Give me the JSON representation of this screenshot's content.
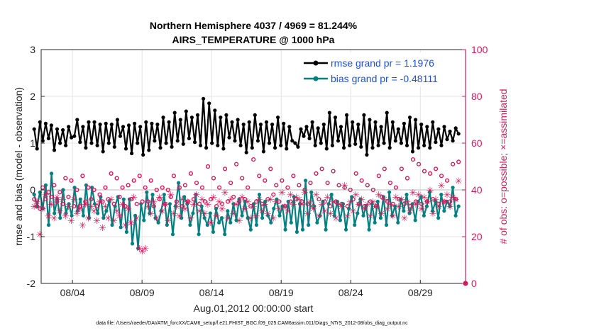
{
  "chart_data": {
    "type": "line",
    "title": "Northern Hemisphere 4037 / 4969 = 81.244%",
    "subtitle": "AIRS_TEMPERATURE @ 1000 hPa",
    "xlabel": "Aug.01,2012 00:00:00 start",
    "ylabel": "rmse and bias (model - observation)",
    "y2label": "# of obs: o=possible; ×=assimilated",
    "xlim": [
      1.75,
      32.25
    ],
    "ylim": [
      -2,
      3
    ],
    "y2lim": [
      0,
      100
    ],
    "xticks": [
      4,
      9,
      14,
      19,
      24,
      29
    ],
    "xtick_labels": [
      "08/04",
      "08/09",
      "08/14",
      "08/19",
      "08/24",
      "08/29"
    ],
    "yticks": [
      -2,
      -1,
      0,
      1,
      2,
      3
    ],
    "ytick_labels": [
      "-2",
      "-1",
      "0",
      "1",
      "2",
      "3"
    ],
    "y2ticks": [
      0,
      20,
      40,
      60,
      80,
      100
    ],
    "y2tick_labels": [
      "0",
      "20",
      "40",
      "60",
      "80",
      "100"
    ],
    "grid": true,
    "legend_position": "top-right",
    "footer": "data file: /Users/raeder/DAI/ATM_forcXX/CAM6_setup/f.e21.FHIST_BGC.f09_025.CAM6assim.011/Diags_NTrS_2012-08/obs_diag_output.nc",
    "series": [
      {
        "name": "rmse grand pr = 1.1976",
        "axis": "left",
        "color": "#000000",
        "marker": "dot",
        "values": [
          1.3,
          0.88,
          1.45,
          1.05,
          1.42,
          1.1,
          1.38,
          0.85,
          1.3,
          1.0,
          1.28,
          0.95,
          1.35,
          1.12,
          1.15,
          1.5,
          1.02,
          1.35,
          0.9,
          1.45,
          1.0,
          1.45,
          0.95,
          1.4,
          0.82,
          1.42,
          1.0,
          1.4,
          0.92,
          1.5,
          1.15,
          1.35,
          0.88,
          1.38,
          0.78,
          1.42,
          1.0,
          1.35,
          0.75,
          1.45,
          0.85,
          1.42,
          1.05,
          1.4,
          0.9,
          1.55,
          1.0,
          1.45,
          0.92,
          1.65,
          1.05,
          1.5,
          0.98,
          1.68,
          1.1,
          1.55,
          1.02,
          1.6,
          0.95,
          1.95,
          0.9,
          1.85,
          1.0,
          1.7,
          0.95,
          1.55,
          0.88,
          1.6,
          1.12,
          1.45,
          1.05,
          1.5,
          0.95,
          1.4,
          0.8,
          1.45,
          0.9,
          1.6,
          1.05,
          1.4,
          0.82,
          1.45,
          1.0,
          1.4,
          0.9,
          1.55,
          0.95,
          1.42,
          0.88,
          1.35,
          1.05,
          1.0,
          0.92,
          1.3,
          1.15,
          1.35,
          1.1,
          1.45,
          0.95,
          1.32,
          1.0,
          1.4,
          0.88,
          1.65,
          0.95,
          1.55,
          1.05,
          1.35,
          0.9,
          1.6,
          0.95,
          1.45,
          0.98,
          1.4,
          0.92,
          1.6,
          0.75,
          1.5,
          0.9,
          1.45,
          0.95,
          1.35,
          1.0,
          1.65,
          0.9,
          1.45,
          1.05,
          1.3,
          1.0,
          1.42,
          0.95,
          1.55,
          0.82,
          1.5,
          0.9,
          1.4,
          0.95,
          1.35,
          0.9,
          1.45,
          1.02,
          1.3,
          0.95,
          1.35,
          1.08,
          1.25,
          1.05,
          1.32,
          1.2
        ]
      },
      {
        "name": "bias grand pr = -0.48111",
        "axis": "left",
        "color": "#008080",
        "marker": "dot",
        "values": [
          -0.1,
          -0.35,
          -0.05,
          -0.4,
          0.1,
          -0.75,
          0.35,
          -0.5,
          -0.2,
          -0.6,
          0.0,
          -0.5,
          -0.3,
          -0.55,
          0.05,
          -0.45,
          -0.2,
          -0.55,
          0.1,
          -0.6,
          0.05,
          -0.3,
          -0.5,
          -0.15,
          -0.6,
          -0.45,
          -0.25,
          -0.75,
          -0.35,
          -0.15,
          -0.8,
          -0.2,
          -0.9,
          -0.2,
          -1.15,
          -0.55,
          -1.25,
          -0.3,
          -0.65,
          -0.05,
          -0.5,
          -0.1,
          -0.6,
          -0.7,
          -0.45,
          -0.1,
          -0.75,
          -0.3,
          -0.95,
          -0.35,
          0.15,
          -0.6,
          -0.15,
          -0.3,
          -0.75,
          -0.5,
          -0.1,
          -0.95,
          -0.35,
          -0.6,
          -0.75,
          -0.5,
          -0.9,
          -0.4,
          -0.7,
          -0.6,
          -0.95,
          -0.45,
          -0.7,
          -0.3,
          -0.65,
          -0.2,
          -0.55,
          -0.25,
          -0.6,
          -0.85,
          -0.3,
          -0.75,
          -0.1,
          -0.6,
          -0.25,
          -0.55,
          -0.7,
          -0.4,
          -0.2,
          -0.55,
          -0.35,
          -0.85,
          -0.25,
          -0.7,
          -0.15,
          -0.9,
          -0.3,
          -0.85,
          0.2,
          -0.75,
          -0.05,
          -0.35,
          -0.7,
          -0.55,
          -0.25,
          -0.85,
          -0.3,
          -0.1,
          -0.55,
          -0.25,
          -0.65,
          -0.3,
          -0.85,
          -0.4,
          -0.15,
          -0.75,
          -0.5,
          -0.2,
          -0.55,
          -0.35,
          -0.85,
          -0.3,
          -0.7,
          -0.25,
          -0.6,
          -0.15,
          -0.75,
          -0.05,
          -0.55,
          -0.35,
          -0.7,
          -0.2,
          -0.45,
          -0.1,
          -0.5,
          -0.3,
          -0.65,
          -0.25,
          -0.15,
          -0.55,
          -0.35,
          -0.05,
          -0.45,
          -0.25,
          -0.6,
          -0.1,
          -0.45,
          -0.25,
          -0.35,
          0.05,
          -0.55,
          -0.35
        ]
      },
      {
        "name": "# possible",
        "axis": "right",
        "color": "#d01c5b",
        "marker": "circle",
        "values": [
          36,
          33,
          32,
          41,
          36,
          39,
          37,
          42,
          35,
          39,
          34,
          45,
          37,
          44,
          33,
          40,
          33,
          46,
          35,
          41,
          36,
          40,
          33,
          38,
          35,
          41,
          36,
          47,
          34,
          45,
          37,
          41,
          33,
          42,
          36,
          44,
          34,
          46,
          35,
          41,
          35,
          44,
          33,
          40,
          36,
          41,
          34,
          40,
          37,
          46,
          35,
          41,
          33,
          42,
          35,
          47,
          36,
          43,
          34,
          41,
          35,
          50,
          36,
          45,
          33,
          41,
          34,
          49,
          35,
          43,
          37,
          51,
          35,
          45,
          36,
          41,
          33,
          53,
          35,
          46,
          34,
          44,
          36,
          49,
          38,
          42,
          35,
          44,
          33,
          41,
          35,
          46,
          36,
          42,
          35,
          40,
          34,
          43,
          33,
          47,
          36,
          49,
          35,
          43,
          33,
          48,
          35,
          42,
          34,
          41,
          33,
          40,
          36,
          47,
          34,
          44,
          33,
          42,
          35,
          40,
          33,
          46,
          37,
          49,
          35,
          43,
          34,
          41,
          36,
          49,
          34,
          45,
          33,
          53,
          35,
          51,
          34,
          48,
          35,
          47,
          36,
          49,
          34,
          46,
          35,
          44,
          35,
          51,
          36,
          52
        ]
      },
      {
        "name": "# assimilated",
        "axis": "right",
        "color": "#d01c5b",
        "marker": "star",
        "values": [
          33,
          35,
          21,
          32,
          38,
          29,
          34,
          28,
          37,
          31,
          36,
          29,
          33,
          27,
          36,
          30,
          32,
          25,
          34,
          28,
          33,
          31,
          27,
          35,
          24,
          33,
          28,
          36,
          27,
          31,
          29,
          34,
          25,
          32,
          26,
          37,
          28,
          15,
          14,
          15,
          33,
          30,
          35,
          28,
          37,
          31,
          34,
          27,
          38,
          30,
          33,
          29,
          36,
          32,
          35,
          28,
          34,
          38,
          31,
          36,
          30,
          34,
          26,
          37,
          29,
          35,
          32,
          39,
          28,
          36,
          30,
          34,
          27,
          37,
          32,
          35,
          28,
          33,
          29,
          36,
          31,
          34,
          30,
          36,
          28,
          35,
          32,
          39,
          33,
          31,
          38,
          34,
          37,
          36,
          34,
          39,
          30,
          35,
          32,
          38,
          29,
          34,
          31,
          37,
          30,
          35,
          28,
          34,
          33,
          42,
          29,
          35,
          31,
          38,
          34,
          36,
          32,
          34,
          29,
          35,
          33,
          38,
          30,
          36,
          32,
          34,
          29,
          37,
          33,
          36,
          28,
          35,
          31,
          39,
          34,
          38,
          32,
          37,
          35,
          40,
          30,
          36,
          33,
          42,
          35,
          38,
          33,
          37,
          36,
          44
        ]
      }
    ]
  }
}
